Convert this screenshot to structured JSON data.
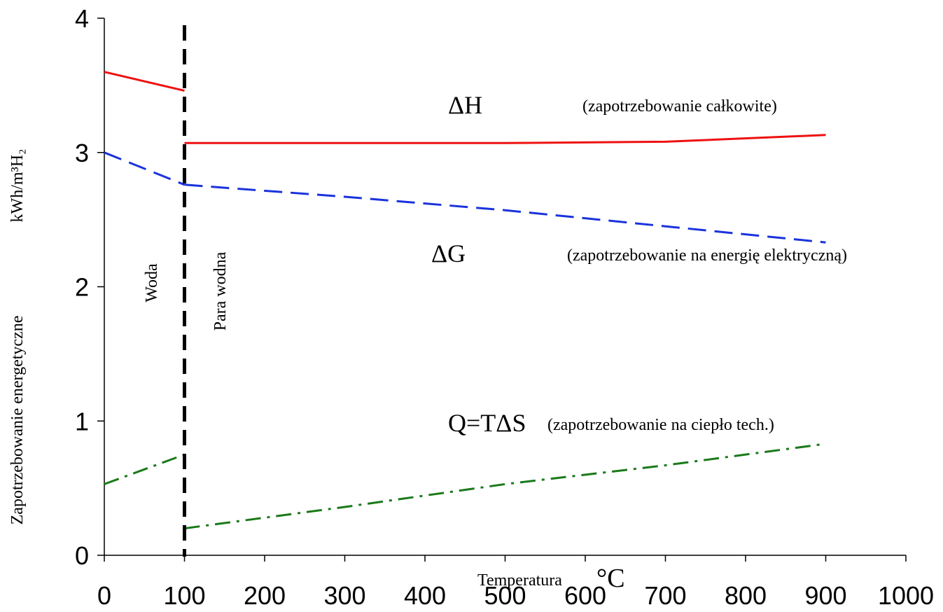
{
  "chart_data": {
    "type": "line",
    "xlabel": "Temperatura",
    "xlabel_unit": "°C",
    "ylabel": "Zapotrzebowanie energetyczne",
    "ylabel_unit": "kWh/m³H₂",
    "xlim": [
      0,
      1000
    ],
    "ylim": [
      0,
      4
    ],
    "x_ticks": [
      "0",
      "100",
      "200",
      "300",
      "400",
      "500",
      "600",
      "700",
      "800",
      "900",
      "1000"
    ],
    "y_ticks": [
      "0",
      "1",
      "2",
      "3",
      "4"
    ],
    "grid": false,
    "phase_boundary": {
      "x": 100,
      "left_label": "Woda",
      "right_label": "Para wodna"
    },
    "series": [
      {
        "name": "ΔH",
        "description": "(zapotrzebowanie całkowite)",
        "color": "#ee1111",
        "style": "solid",
        "segments": [
          [
            [
              0,
              3.6
            ],
            [
              100,
              3.46
            ]
          ],
          [
            [
              100,
              3.07
            ],
            [
              300,
              3.07
            ],
            [
              500,
              3.07
            ],
            [
              700,
              3.08
            ],
            [
              900,
              3.13
            ]
          ]
        ]
      },
      {
        "name": "ΔG",
        "description": "(zapotrzebowanie na energię elektryczną)",
        "color": "#1a33dd",
        "style": "dashed",
        "segments": [
          [
            [
              0,
              3.0
            ],
            [
              100,
              2.76
            ]
          ],
          [
            [
              100,
              2.76
            ],
            [
              300,
              2.67
            ],
            [
              500,
              2.57
            ],
            [
              700,
              2.45
            ],
            [
              900,
              2.33
            ]
          ]
        ]
      },
      {
        "name": "Q=TΔS",
        "description": "(zapotrzebowanie na ciepło tech.)",
        "color": "#1a7a1a",
        "style": "dashdot",
        "segments": [
          [
            [
              0,
              0.53
            ],
            [
              100,
              0.75
            ]
          ],
          [
            [
              100,
              0.2
            ],
            [
              300,
              0.36
            ],
            [
              500,
              0.53
            ],
            [
              700,
              0.67
            ],
            [
              900,
              0.83
            ]
          ]
        ]
      }
    ]
  }
}
